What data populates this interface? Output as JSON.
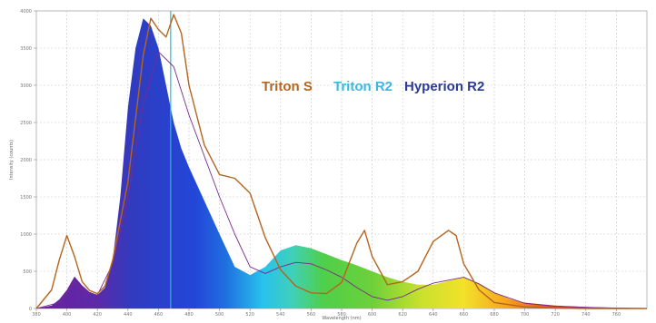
{
  "chart_data": {
    "type": "area",
    "xlabel": "Wavelength (nm)",
    "ylabel": "Intensity (counts)",
    "xlim": [
      380,
      780
    ],
    "ylim": [
      0,
      4000
    ],
    "x_ticks": [
      380,
      400,
      420,
      440,
      460,
      480,
      500,
      520,
      540,
      560,
      580,
      600,
      620,
      640,
      660,
      680,
      700,
      720,
      740,
      760
    ],
    "y_ticks": [
      0,
      500,
      1000,
      1500,
      2000,
      2500,
      3000,
      3500,
      4000
    ],
    "grid": true,
    "cursor_x": 468,
    "legend": [
      "Triton S",
      "Triton R2",
      "Hyperion R2"
    ],
    "series": [
      {
        "name": "Hyperion R2",
        "style": "filled-spectrum",
        "x": [
          380,
          390,
          395,
          400,
          405,
          410,
          415,
          420,
          425,
          430,
          435,
          440,
          445,
          450,
          455,
          460,
          465,
          470,
          475,
          480,
          490,
          500,
          510,
          520,
          530,
          540,
          550,
          560,
          570,
          580,
          590,
          600,
          610,
          620,
          630,
          640,
          650,
          660,
          670,
          680,
          690,
          700,
          720,
          740,
          760,
          780
        ],
        "y": [
          0,
          40,
          120,
          250,
          430,
          310,
          220,
          180,
          280,
          650,
          1500,
          2700,
          3500,
          3900,
          3800,
          3500,
          3000,
          2500,
          2150,
          1900,
          1450,
          1000,
          560,
          450,
          560,
          780,
          850,
          810,
          730,
          650,
          580,
          500,
          420,
          360,
          320,
          320,
          370,
          420,
          340,
          220,
          130,
          80,
          40,
          20,
          10,
          0
        ]
      },
      {
        "name": "Triton R2",
        "style": "line",
        "x": [
          380,
          395,
          400,
          405,
          410,
          420,
          430,
          440,
          450,
          460,
          470,
          480,
          490,
          500,
          510,
          520,
          530,
          540,
          550,
          560,
          570,
          580,
          590,
          600,
          610,
          620,
          630,
          640,
          650,
          660,
          670,
          680,
          700,
          720,
          750,
          780
        ],
        "y": [
          0,
          80,
          210,
          360,
          250,
          180,
          600,
          1500,
          2750,
          3450,
          3250,
          2600,
          2050,
          1500,
          1000,
          560,
          470,
          560,
          620,
          600,
          520,
          420,
          280,
          160,
          110,
          160,
          260,
          340,
          380,
          420,
          330,
          210,
          70,
          30,
          10,
          0
        ]
      },
      {
        "name": "Triton S",
        "style": "line",
        "x": [
          380,
          390,
          395,
          400,
          405,
          410,
          415,
          420,
          425,
          430,
          440,
          450,
          455,
          460,
          465,
          470,
          475,
          480,
          490,
          500,
          510,
          520,
          530,
          540,
          550,
          560,
          570,
          580,
          590,
          595,
          600,
          610,
          620,
          630,
          640,
          650,
          655,
          660,
          670,
          680,
          700,
          720,
          740,
          760,
          780
        ],
        "y": [
          0,
          250,
          650,
          980,
          700,
          360,
          240,
          200,
          300,
          650,
          1700,
          3400,
          3900,
          3750,
          3650,
          3950,
          3700,
          3000,
          2200,
          1800,
          1750,
          1550,
          950,
          520,
          300,
          210,
          200,
          350,
          880,
          1050,
          700,
          320,
          360,
          500,
          900,
          1050,
          980,
          600,
          250,
          80,
          20,
          5,
          0,
          0,
          0
        ]
      }
    ]
  },
  "colors": {
    "triton_s": "#b5651d",
    "triton_r2": "#3ab8e0",
    "hyperion_r2": "#2d3a96",
    "cursor": "#2fb8c8",
    "grid": "#c8c8c8"
  }
}
